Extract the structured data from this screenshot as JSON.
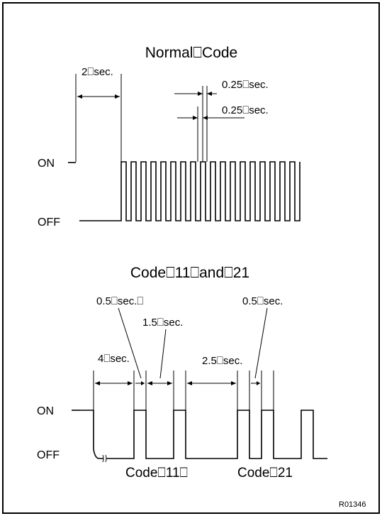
{
  "normal": {
    "title": "Normal⎕Code",
    "t2": "2⎕sec.",
    "t025a": "0.25⎕sec.",
    "t025b": "0.25⎕sec.",
    "on": "ON",
    "off": "OFF"
  },
  "codes": {
    "title": "Code⎕11⎕and⎕21",
    "t05a": "0.5⎕sec.⎕",
    "t15": "1.5⎕sec.",
    "t4": "4⎕sec.",
    "t25": "2.5⎕sec.",
    "t05b": "0.5⎕sec.",
    "on": "ON",
    "off": "OFF",
    "code11": "Code⎕11⎕",
    "code21": "Code⎕21"
  },
  "ref": "R01346"
}
